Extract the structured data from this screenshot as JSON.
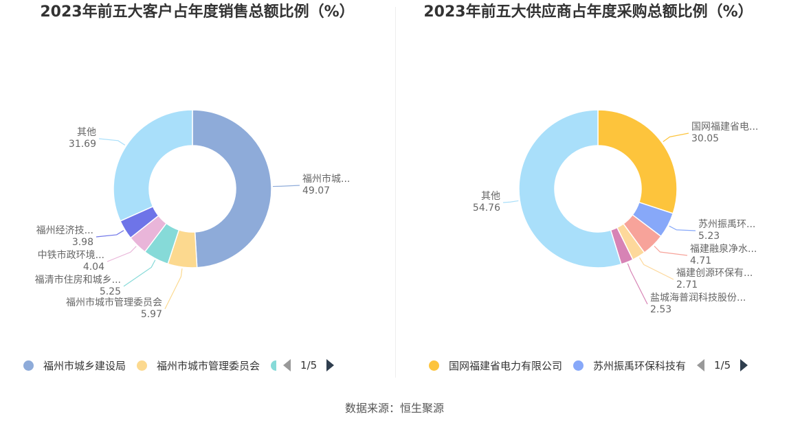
{
  "source_prefix": "数据来源：",
  "source_name": "恒生聚源",
  "chart_data": [
    {
      "type": "pie",
      "title": "2023年前五大客户占年度销售总额比例（%）",
      "slices": [
        {
          "label": "福州市城乡建设局",
          "display": "福州市城...",
          "value": 49.07,
          "color": "#8eabd9"
        },
        {
          "label": "福州市城市管理委员会",
          "display": "福州市城市管理委员会",
          "value": 5.97,
          "color": "#fcd98f"
        },
        {
          "label": "福清市住房和城乡...",
          "display": "福清市住房和城乡...",
          "value": 5.25,
          "color": "#86dad8"
        },
        {
          "label": "中铁市政环境...",
          "display": "中铁市政环境...",
          "value": 4.04,
          "color": "#e9b5d9"
        },
        {
          "label": "福州经济技...",
          "display": "福州经济技...",
          "value": 3.98,
          "color": "#6e74e8"
        },
        {
          "label": "其他",
          "display": "其他",
          "value": 31.69,
          "color": "#a9dffa"
        }
      ],
      "legend": {
        "items": [
          "福州市城乡建设局",
          "福州市城市管理委员会"
        ],
        "page": "1/5"
      }
    },
    {
      "type": "pie",
      "title": "2023年前五大供应商占年度采购总额比例（%）",
      "slices": [
        {
          "label": "国网福建省电力有限公司",
          "display": "国网福建省电...",
          "value": 30.05,
          "color": "#fdc43c"
        },
        {
          "label": "苏州振禹环保科技有",
          "display": "苏州振禹环...",
          "value": 5.23,
          "color": "#87a8f9"
        },
        {
          "label": "福建融泉净水...",
          "display": "福建融泉净水...",
          "value": 4.71,
          "color": "#f7a39a"
        },
        {
          "label": "福建创源环保有...",
          "display": "福建创源环保有...",
          "value": 2.71,
          "color": "#fdd89b"
        },
        {
          "label": "盐城海普润科技股份...",
          "display": "盐城海普润科技股份...",
          "value": 2.53,
          "color": "#d783b5"
        },
        {
          "label": "其他",
          "display": "其他",
          "value": 54.76,
          "color": "#a9dffa"
        }
      ],
      "legend": {
        "items": [
          "国网福建省电力有限公司",
          "苏州振禹环保科技有"
        ],
        "page": "1/5"
      }
    }
  ]
}
